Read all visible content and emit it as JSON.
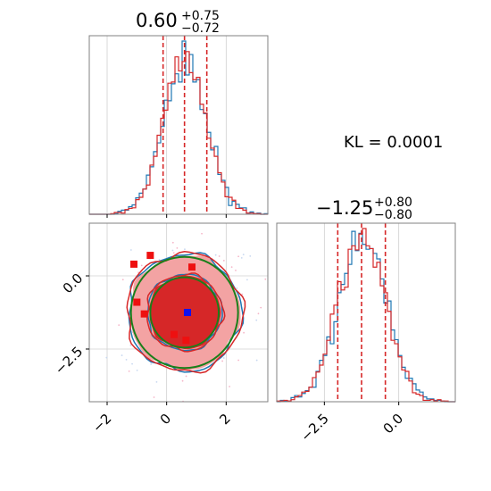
{
  "colors": {
    "blue": "#1f77b4",
    "red": "#d62728",
    "green": "#1a7f1a",
    "red_fill_light": "#f3a3a3",
    "red_fill_dark": "#d62728",
    "grid": "#d0d0d0",
    "frame": "#808080",
    "square_blue": "#1010ee",
    "square_red": "#ee1010"
  },
  "kl_label": "KL = 0.0001",
  "chart_data": [
    {
      "type": "histogram",
      "panel": "top-left",
      "title_value": "0.60",
      "title_plus": "+0.75",
      "title_minus": "−0.72",
      "xlim": [
        -2.6,
        3.4
      ],
      "quantile_lines": [
        -0.12,
        0.6,
        1.35
      ],
      "grid": true,
      "series": [
        {
          "name": "",
          "color": "blue",
          "mean": 0.62,
          "sd": 0.73,
          "seed": 11
        },
        {
          "name": "",
          "color": "red",
          "mean": 0.6,
          "sd": 0.72,
          "seed": 29
        }
      ]
    },
    {
      "type": "histogram",
      "panel": "bottom-right",
      "title_value": "−1.25",
      "title_plus": "+0.80",
      "title_minus": "−0.80",
      "xlim": [
        -4.1,
        1.9
      ],
      "xticks": [
        -2.5,
        0.0
      ],
      "xtick_labels": [
        "−2.5",
        "0.0"
      ],
      "quantile_lines": [
        -2.05,
        -1.25,
        -0.45
      ],
      "grid": true,
      "series": [
        {
          "name": "",
          "color": "blue",
          "mean": -1.23,
          "sd": 0.8,
          "seed": 47
        },
        {
          "name": "",
          "color": "red",
          "mean": -1.25,
          "sd": 0.8,
          "seed": 83
        }
      ]
    },
    {
      "type": "scatter_contour",
      "panel": "bottom-left",
      "xlim": [
        -2.6,
        3.4
      ],
      "ylim": [
        -4.3,
        1.8
      ],
      "xticks": [
        -2,
        0,
        2
      ],
      "xtick_labels": [
        "−2",
        "0",
        "2"
      ],
      "yticks": [
        0.0,
        -2.5
      ],
      "ytick_labels": [
        "0.0",
        "−2.5"
      ],
      "grid": true,
      "center": [
        0.6,
        -1.25
      ],
      "red_markers": [
        {
          "x": -1.1,
          "y": 0.4
        },
        {
          "x": -0.55,
          "y": 0.7
        },
        {
          "x": 0.85,
          "y": 0.3
        },
        {
          "x": -1.0,
          "y": -0.9
        },
        {
          "x": -0.75,
          "y": -1.3
        },
        {
          "x": 0.25,
          "y": -2.0
        },
        {
          "x": 0.65,
          "y": -2.2
        }
      ],
      "blue_markers": [
        {
          "x": 0.7,
          "y": -1.25
        }
      ]
    }
  ]
}
